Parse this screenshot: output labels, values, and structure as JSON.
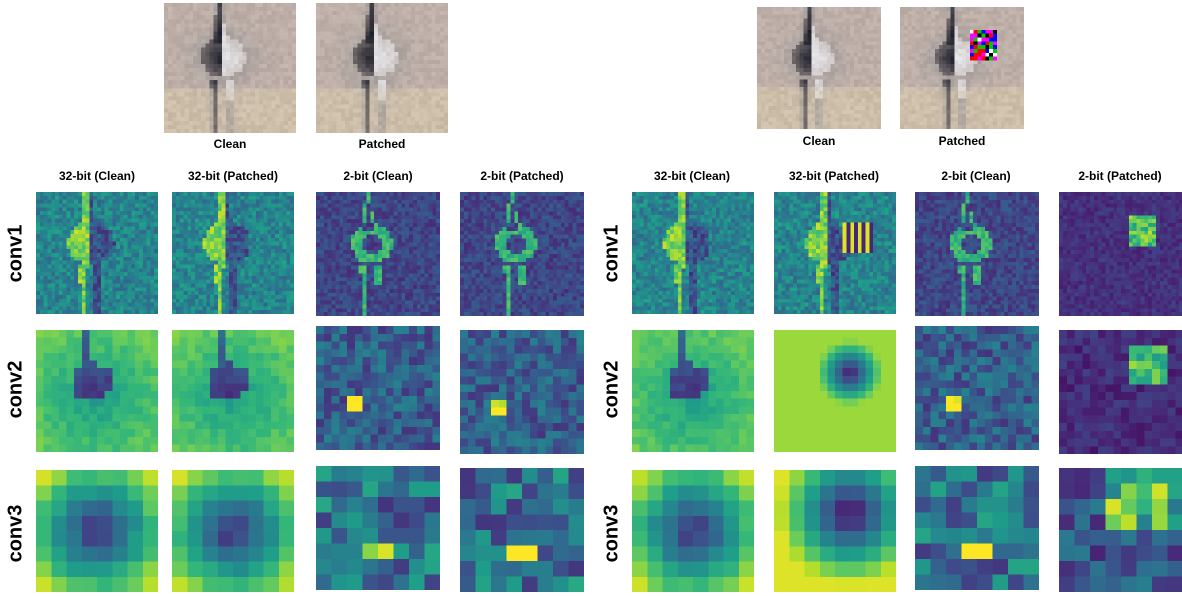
{
  "panels": [
    {
      "inputs": [
        {
          "label": "Clean",
          "patched": false
        },
        {
          "label": "Patched",
          "patched": false
        }
      ],
      "columns": [
        "32-bit (Clean)",
        "32-bit (Patched)",
        "2-bit (Clean)",
        "2-bit (Patched)"
      ],
      "rows": [
        "conv1",
        "conv2",
        "conv3"
      ]
    },
    {
      "inputs": [
        {
          "label": "Clean",
          "patched": false
        },
        {
          "label": "Patched",
          "patched": true
        }
      ],
      "columns": [
        "32-bit (Clean)",
        "32-bit (Patched)",
        "2-bit (Clean)",
        "2-bit (Patched)"
      ],
      "rows": [
        "conv1",
        "conv2",
        "conv3"
      ]
    }
  ],
  "colormap": "viridis"
}
